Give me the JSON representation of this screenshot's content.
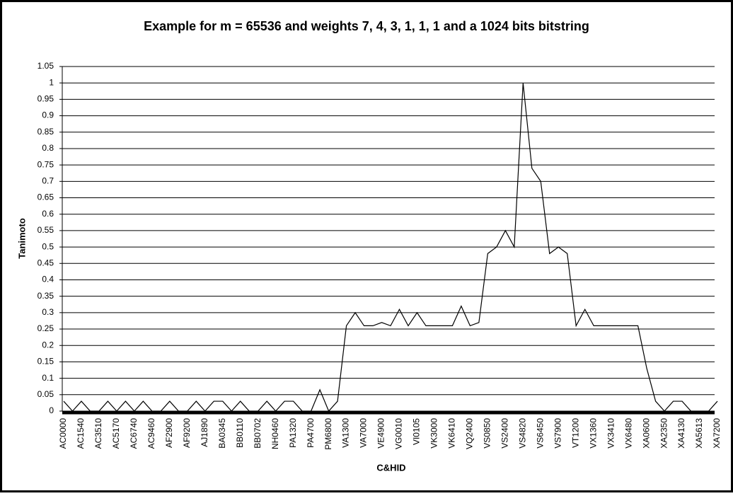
{
  "chart_data": {
    "type": "line",
    "title": "Example for m = 65536 and weights 7, 4, 3, 1, 1, 1 and a 1024 bits bitstring",
    "x_label": "C&HID",
    "y_label": "Tanimoto",
    "categories": [
      "AC0000",
      null,
      "AC1540",
      null,
      "AC3510",
      null,
      "AC5170",
      null,
      "AC6740",
      null,
      "AC9460",
      null,
      "AF2900",
      null,
      "AF9200",
      null,
      "AJ1890",
      null,
      "BA0345",
      null,
      "BB0110",
      null,
      "BB0702",
      null,
      "NH0460",
      null,
      "PA1320",
      null,
      "PA4700",
      null,
      "PM6800",
      null,
      "VA1300",
      null,
      "VA7000",
      null,
      "VE4900",
      null,
      "VG0010",
      null,
      "VI0105",
      null,
      "VK3000",
      null,
      "VK6410",
      null,
      "VQ2400",
      null,
      "VS0850",
      null,
      "VS2400",
      null,
      "VS4820",
      null,
      "VS6450",
      null,
      "VS7900",
      null,
      "VT1200",
      null,
      "VX1360",
      null,
      "VX3410",
      null,
      "VX6480",
      null,
      "XA0600",
      null,
      "XA2350",
      null,
      "XA4130",
      null,
      "XA5613",
      null,
      "XA7200"
    ],
    "series": [
      {
        "name": "Tanimoto",
        "color": "#000000",
        "values": [
          0.03,
          0,
          0.03,
          0,
          0,
          0.03,
          0,
          0.03,
          0,
          0.03,
          0,
          0,
          0.03,
          0,
          0,
          0.03,
          0,
          0.03,
          0.03,
          0,
          0.03,
          0,
          0,
          0.03,
          0,
          0.03,
          0.03,
          0,
          0,
          0.065,
          0,
          0.03,
          0.26,
          0.3,
          0.26,
          0.26,
          0.27,
          0.26,
          0.31,
          0.26,
          0.3,
          0.26,
          0.26,
          0.26,
          0.26,
          0.32,
          0.26,
          0.27,
          0.48,
          0.5,
          0.55,
          0.5,
          1,
          0.74,
          0.7,
          0.48,
          0.5,
          0.48,
          0.26,
          0.31,
          0.26,
          0.26,
          0.26,
          0.26,
          0.26,
          0.26,
          0.13,
          0.03,
          0,
          0.03,
          0.03,
          0,
          0,
          0,
          0.03
        ]
      }
    ],
    "ylim": [
      0,
      1.05
    ],
    "yticks": [
      0,
      0.05,
      0.1,
      0.15,
      0.2,
      0.25,
      0.3,
      0.35,
      0.4,
      0.45,
      0.5,
      0.55,
      0.6,
      0.65,
      0.7,
      0.75,
      0.8,
      0.85,
      0.9,
      0.95,
      1,
      1.05
    ],
    "grid": true
  }
}
